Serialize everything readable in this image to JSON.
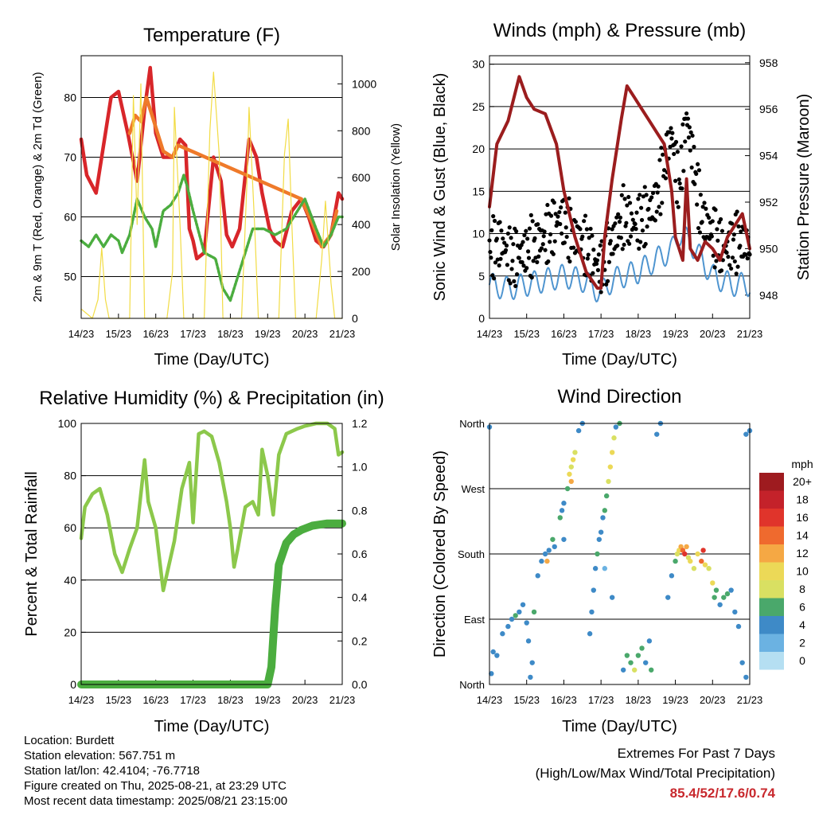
{
  "time_ticks": [
    "14/23",
    "15/23",
    "16/23",
    "17/23",
    "18/23",
    "19/23",
    "20/23",
    "21/23"
  ],
  "chart_data": [
    {
      "type": "line",
      "title": "Temperature (F)",
      "xlabel": "Time (Day/UTC)",
      "ylabel": "2m & 9m T (Red, Orange) & 2m Td (Green)",
      "ylabel_right": "Solar Insolation (Yellow)",
      "x_ticks": [
        "14/23",
        "15/23",
        "16/23",
        "17/23",
        "18/23",
        "19/23",
        "20/23",
        "21/23"
      ],
      "ylim": [
        43,
        87
      ],
      "yticks": [
        50,
        60,
        70,
        80
      ],
      "ylim_right": [
        0,
        1120
      ],
      "yticks_right": [
        0,
        200,
        400,
        600,
        800,
        1000
      ],
      "grid": true,
      "series": [
        {
          "key": "t2m",
          "color": "#d8262a",
          "x": [
            0,
            0.15,
            0.4,
            0.8,
            1.0,
            1.25,
            1.5,
            1.7,
            1.85,
            2.0,
            2.2,
            2.45,
            2.65,
            2.8,
            2.9,
            3.0,
            3.1,
            3.3,
            3.55,
            3.75,
            3.9,
            4.05,
            4.25,
            4.5,
            4.7,
            4.85,
            5.05,
            5.2,
            5.4,
            5.65,
            5.9,
            6.1,
            6.3,
            6.5,
            6.7,
            6.9,
            7.0
          ],
          "y": [
            73,
            67,
            64,
            80,
            81,
            74,
            66,
            78,
            85,
            74,
            70,
            70,
            73,
            72,
            58,
            56,
            53,
            54,
            70,
            66,
            57,
            55,
            58,
            73,
            70,
            64,
            58,
            56,
            55,
            61,
            63,
            60,
            56,
            55,
            57,
            64,
            63
          ]
        },
        {
          "key": "t9m",
          "color": "#ef7a2a",
          "x": [
            1.3,
            1.45,
            1.6,
            1.75,
            2.2,
            2.45,
            2.6,
            5.9,
            6.2,
            6.45,
            6.7,
            6.85
          ],
          "y": [
            74,
            77,
            76,
            80,
            71,
            70,
            72,
            63,
            59,
            55,
            57,
            61
          ]
        },
        {
          "key": "td2m",
          "color": "#4bad3f",
          "x": [
            0,
            0.2,
            0.4,
            0.6,
            0.8,
            1.0,
            1.1,
            1.3,
            1.5,
            1.7,
            1.9,
            2.0,
            2.2,
            2.4,
            2.6,
            2.75,
            2.85,
            3.0,
            3.3,
            3.6,
            3.8,
            4.0,
            4.3,
            4.6,
            4.9,
            5.2,
            5.5,
            5.8,
            6.0,
            6.3,
            6.5,
            6.7,
            6.9,
            7.0
          ],
          "y": [
            56,
            55,
            57,
            55,
            57,
            56,
            54,
            57,
            63,
            60,
            58,
            55,
            61,
            62,
            64,
            67,
            65,
            61,
            54,
            53,
            48,
            46,
            52,
            58,
            58,
            57,
            58,
            61,
            63,
            58,
            55,
            57,
            60,
            60
          ]
        },
        {
          "key": "solar",
          "axis": "right",
          "color": "#f2dc45",
          "x": [
            0,
            0.3,
            0.45,
            0.55,
            0.65,
            0.75,
            1.0,
            1.3,
            1.4,
            1.5,
            1.6,
            1.7,
            2.0,
            2.3,
            2.45,
            2.5,
            2.65,
            2.75,
            3.0,
            3.3,
            3.45,
            3.55,
            3.7,
            3.8,
            4.0,
            4.3,
            4.45,
            4.5,
            4.65,
            4.75,
            5.0,
            5.3,
            5.45,
            5.55,
            5.65,
            5.75,
            6.0,
            6.3,
            6.45,
            6.55,
            6.7,
            6.8,
            7.0
          ],
          "y": [
            40,
            0,
            80,
            300,
            80,
            0,
            0,
            0,
            950,
            400,
            1000,
            0,
            0,
            0,
            200,
            900,
            400,
            0,
            0,
            0,
            800,
            1050,
            700,
            0,
            0,
            0,
            600,
            900,
            400,
            0,
            0,
            0,
            700,
            850,
            400,
            0,
            0,
            0,
            250,
            500,
            150,
            0,
            0
          ]
        }
      ]
    },
    {
      "type": "scatter",
      "title": "Winds (mph) & Pressure (mb)",
      "xlabel": "Time (Day/UTC)",
      "ylabel": "Sonic Wind & Gust (Blue, Black)",
      "ylabel_right": "Station Pressure (Maroon)",
      "x_ticks": [
        "14/23",
        "15/23",
        "16/23",
        "17/23",
        "18/23",
        "19/23",
        "20/23",
        "21/23"
      ],
      "ylim": [
        0,
        31
      ],
      "yticks": [
        0,
        5,
        10,
        15,
        20,
        25,
        30
      ],
      "ylim_right": [
        947,
        958.3
      ],
      "yticks_right": [
        948,
        950,
        952,
        954,
        956,
        958
      ],
      "grid": true,
      "series": [
        {
          "key": "wind",
          "color": "#4f95d0",
          "x": [
            0,
            0.5,
            1.0,
            1.5,
            2.0,
            2.5,
            3.0,
            3.3,
            3.6,
            4.0,
            4.5,
            4.9,
            5.1,
            5.4,
            5.7,
            6.0,
            6.5,
            7.0
          ],
          "y": [
            4,
            3.5,
            4,
            4.5,
            5,
            4.5,
            3,
            4.5,
            5,
            5.5,
            7,
            8,
            10,
            9,
            7,
            5,
            4,
            4
          ]
        },
        {
          "key": "gust",
          "color": "#000000",
          "x": [
            0,
            0.3,
            0.6,
            1.0,
            1.3,
            1.6,
            1.9,
            2.2,
            2.5,
            2.8,
            3.0,
            3.3,
            3.6,
            3.9,
            4.2,
            4.5,
            4.7,
            4.9,
            5.1,
            5.3,
            5.5,
            5.7,
            6.0,
            6.3,
            6.6,
            6.9,
            7.0
          ],
          "y": [
            8,
            9,
            7,
            8,
            9,
            10,
            12,
            10,
            9,
            7,
            6,
            9,
            12,
            11,
            12,
            14,
            18,
            22,
            15,
            24,
            18,
            12,
            10,
            8,
            9,
            9,
            8
          ]
        },
        {
          "key": "pressure",
          "axis": "right",
          "color": "#9b1d1e",
          "x": [
            0,
            0.2,
            0.5,
            0.8,
            1.0,
            1.2,
            1.5,
            1.8,
            2.0,
            2.3,
            2.6,
            2.9,
            3.0,
            3.1,
            3.3,
            3.55,
            3.7,
            3.9,
            4.1,
            4.3,
            4.5,
            4.7,
            4.9,
            5.0,
            5.2,
            5.3,
            5.4,
            5.6,
            5.8,
            6.0,
            6.2,
            6.4,
            6.6,
            6.8,
            7.0
          ],
          "y": [
            951.8,
            954.5,
            955.5,
            957.4,
            956.5,
            956,
            955.8,
            954.5,
            952.5,
            950.5,
            949,
            948.3,
            948.3,
            950.5,
            953,
            955.6,
            957,
            956.5,
            956,
            955.5,
            955,
            954.5,
            952.5,
            950.5,
            949.5,
            953,
            950,
            949.5,
            950.3,
            950,
            949.5,
            950.5,
            951,
            951.5,
            950
          ]
        }
      ]
    },
    {
      "type": "line",
      "title": "Relative Humidity (%) & Precipitation (in)",
      "xlabel": "Time (Day/UTC)",
      "ylabel": "Percent & Total Rainfall",
      "x_ticks": [
        "14/23",
        "15/23",
        "16/23",
        "17/23",
        "18/23",
        "19/23",
        "20/23",
        "21/23"
      ],
      "ylim": [
        0,
        100
      ],
      "yticks": [
        0,
        20,
        40,
        60,
        80,
        100
      ],
      "ylim_right": [
        0,
        1.2
      ],
      "yticks_right": [
        "0.0",
        "0.2",
        "0.4",
        "0.6",
        "0.8",
        "1.0",
        "1.2"
      ],
      "grid": true,
      "series": [
        {
          "key": "rh",
          "color": "#8cc84b",
          "x": [
            0,
            0.1,
            0.3,
            0.5,
            0.7,
            0.9,
            1.1,
            1.3,
            1.5,
            1.7,
            1.8,
            2.0,
            2.2,
            2.5,
            2.7,
            2.9,
            3.0,
            3.15,
            3.3,
            3.5,
            3.7,
            3.9,
            4.0,
            4.1,
            4.2,
            4.4,
            4.6,
            4.75,
            4.85,
            5.0,
            5.15,
            5.3,
            5.5,
            5.8,
            6.0,
            6.3,
            6.6,
            6.8,
            6.9,
            7.0
          ],
          "y": [
            56,
            68,
            73,
            75,
            65,
            50,
            43,
            52,
            60,
            86,
            70,
            60,
            36,
            55,
            75,
            85,
            62,
            96,
            97,
            95,
            85,
            70,
            60,
            45,
            52,
            68,
            70,
            65,
            90,
            80,
            65,
            88,
            96,
            98,
            99,
            100,
            100,
            98,
            88,
            89
          ]
        },
        {
          "key": "precip",
          "axis": "right",
          "color": "#4bad3f",
          "x": [
            0,
            5.0,
            5.1,
            5.2,
            5.3,
            5.5,
            5.7,
            5.9,
            6.2,
            6.6,
            7.0
          ],
          "y": [
            0,
            0,
            0.08,
            0.35,
            0.55,
            0.65,
            0.69,
            0.71,
            0.73,
            0.74,
            0.74
          ]
        }
      ]
    },
    {
      "type": "scatter",
      "title": "Wind Direction",
      "xlabel": "Time (Day/UTC)",
      "ylabel": "Direction (Colored By Speed)",
      "x_ticks": [
        "14/23",
        "15/23",
        "16/23",
        "17/23",
        "18/23",
        "19/23",
        "20/23",
        "21/23"
      ],
      "ylim": [
        0,
        360
      ],
      "yticks": [
        0,
        90,
        180,
        270,
        360
      ],
      "ytick_labels": [
        "North",
        "East",
        "South",
        "West",
        "North"
      ],
      "grid": true,
      "points": [
        [
          0.0,
          355,
          3
        ],
        [
          0.05,
          15,
          3
        ],
        [
          0.1,
          45,
          3
        ],
        [
          0.2,
          40,
          4
        ],
        [
          0.35,
          70,
          3
        ],
        [
          0.5,
          80,
          4
        ],
        [
          0.6,
          90,
          3
        ],
        [
          0.7,
          95,
          5
        ],
        [
          0.8,
          100,
          4
        ],
        [
          0.9,
          110,
          3
        ],
        [
          1.0,
          85,
          4
        ],
        [
          1.05,
          60,
          3
        ],
        [
          1.1,
          10,
          4
        ],
        [
          1.15,
          30,
          3
        ],
        [
          1.2,
          100,
          5
        ],
        [
          1.3,
          150,
          4
        ],
        [
          1.4,
          170,
          3
        ],
        [
          1.5,
          180,
          4
        ],
        [
          1.55,
          170,
          12
        ],
        [
          1.6,
          185,
          4
        ],
        [
          1.7,
          200,
          5
        ],
        [
          1.75,
          190,
          4
        ],
        [
          1.9,
          230,
          6
        ],
        [
          1.95,
          240,
          3
        ],
        [
          2.0,
          250,
          4
        ],
        [
          2.1,
          270,
          5
        ],
        [
          2.15,
          290,
          10
        ],
        [
          2.2,
          300,
          8
        ],
        [
          2.25,
          310,
          9
        ],
        [
          2.3,
          320,
          7
        ],
        [
          2.2,
          280,
          11
        ],
        [
          2.4,
          350,
          3
        ],
        [
          2.5,
          360,
          4
        ],
        [
          2.0,
          200,
          3
        ],
        [
          2.7,
          70,
          3
        ],
        [
          2.75,
          100,
          4
        ],
        [
          2.8,
          130,
          3
        ],
        [
          2.85,
          160,
          4
        ],
        [
          2.9,
          180,
          5
        ],
        [
          2.95,
          200,
          4
        ],
        [
          3.0,
          210,
          3
        ],
        [
          3.05,
          230,
          4
        ],
        [
          3.1,
          240,
          5
        ],
        [
          3.15,
          260,
          6
        ],
        [
          3.2,
          280,
          7
        ],
        [
          3.25,
          300,
          9
        ],
        [
          3.3,
          320,
          10
        ],
        [
          3.35,
          340,
          7
        ],
        [
          3.4,
          355,
          4
        ],
        [
          3.5,
          360,
          6
        ],
        [
          3.1,
          160,
          2
        ],
        [
          3.3,
          120,
          3
        ],
        [
          3.6,
          20,
          3
        ],
        [
          3.7,
          40,
          5
        ],
        [
          3.8,
          30,
          6
        ],
        [
          3.9,
          20,
          7
        ],
        [
          4.0,
          40,
          5
        ],
        [
          4.1,
          50,
          6
        ],
        [
          4.2,
          30,
          4
        ],
        [
          4.3,
          60,
          3
        ],
        [
          4.35,
          20,
          5
        ],
        [
          4.5,
          345,
          3
        ],
        [
          4.6,
          360,
          4
        ],
        [
          4.8,
          120,
          3
        ],
        [
          4.9,
          150,
          4
        ],
        [
          5.0,
          170,
          6
        ],
        [
          5.05,
          180,
          8
        ],
        [
          5.1,
          185,
          9
        ],
        [
          5.15,
          190,
          11
        ],
        [
          5.2,
          185,
          13
        ],
        [
          5.25,
          180,
          16
        ],
        [
          5.3,
          190,
          12
        ],
        [
          5.35,
          175,
          8
        ],
        [
          5.4,
          170,
          10
        ],
        [
          5.5,
          160,
          7
        ],
        [
          5.6,
          180,
          9
        ],
        [
          5.7,
          170,
          14
        ],
        [
          5.75,
          185,
          16
        ],
        [
          5.8,
          165,
          10
        ],
        [
          5.9,
          160,
          8
        ],
        [
          6.0,
          140,
          9
        ],
        [
          6.05,
          120,
          6
        ],
        [
          6.1,
          130,
          5
        ],
        [
          6.2,
          110,
          4
        ],
        [
          6.3,
          120,
          5
        ],
        [
          6.4,
          125,
          6
        ],
        [
          6.5,
          130,
          4
        ],
        [
          6.6,
          100,
          3
        ],
        [
          6.7,
          80,
          4
        ],
        [
          6.8,
          30,
          3
        ],
        [
          6.9,
          10,
          4
        ],
        [
          6.9,
          345,
          3
        ],
        [
          7.0,
          350,
          4
        ]
      ]
    }
  ],
  "colorbar": {
    "title": "mph",
    "labels": [
      "20+",
      "18",
      "16",
      "14",
      "12",
      "10",
      "8",
      "6",
      "4",
      "2",
      "0"
    ],
    "colors": [
      "#9e1b1f",
      "#c4222a",
      "#e0342b",
      "#ef6a2e",
      "#f5a844",
      "#ecd957",
      "#d9e062",
      "#4aa86b",
      "#3e8ac7",
      "#6bb2e2",
      "#b5dff2"
    ]
  },
  "info": {
    "location": "Location: Burdett",
    "elevation": "Station elevation: 567.751 m",
    "latlon": "Station lat/lon: 42.4104; -76.7718",
    "created": "Figure created on Thu, 2025-08-21, at 23:29 UTC",
    "recent": "Most recent data timestamp: 2025/08/21 23:15:00"
  },
  "extremes": {
    "title": "Extremes For Past 7 Days",
    "subtitle": "(High/Low/Max Wind/Total Precipitation)",
    "values": "85.4/52/17.6/0.74"
  }
}
